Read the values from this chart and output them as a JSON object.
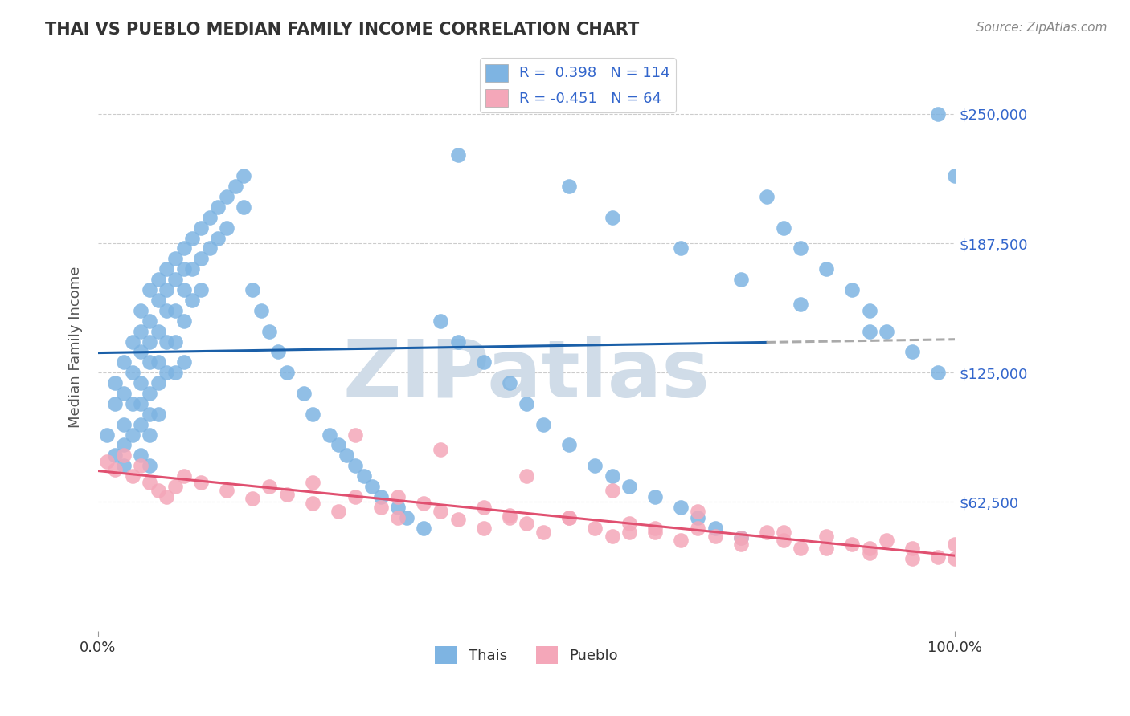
{
  "title": "THAI VS PUEBLO MEDIAN FAMILY INCOME CORRELATION CHART",
  "source_text": "Source: ZipAtlas.com",
  "ylabel": "Median Family Income",
  "xlim": [
    0,
    100
  ],
  "ylim": [
    0,
    275000
  ],
  "yticks": [
    62500,
    125000,
    187500,
    250000
  ],
  "ytick_labels": [
    "$62,500",
    "$125,000",
    "$187,500",
    "$250,000"
  ],
  "xticks": [
    0,
    100
  ],
  "xtick_labels": [
    "0.0%",
    "100.0%"
  ],
  "r_thais": 0.398,
  "n_thais": 114,
  "r_pueblo": -0.451,
  "n_pueblo": 64,
  "blue_color": "#7eb4e2",
  "pink_color": "#f4a7b9",
  "blue_line_color": "#1a5fa8",
  "pink_line_color": "#e05070",
  "title_color": "#333333",
  "axis_label_color": "#555555",
  "tick_label_color": "#3366cc",
  "grid_color": "#cccccc",
  "background_color": "#ffffff",
  "watermark_text": "ZIPatlas",
  "watermark_color": "#d0dce8",
  "legend_r_color": "#3366cc",
  "thais_scatter_x": [
    1,
    2,
    2,
    2,
    3,
    3,
    3,
    3,
    3,
    4,
    4,
    4,
    4,
    5,
    5,
    5,
    5,
    5,
    5,
    5,
    6,
    6,
    6,
    6,
    6,
    6,
    6,
    6,
    7,
    7,
    7,
    7,
    7,
    7,
    8,
    8,
    8,
    8,
    8,
    9,
    9,
    9,
    9,
    9,
    10,
    10,
    10,
    10,
    10,
    11,
    11,
    11,
    12,
    12,
    12,
    13,
    13,
    14,
    14,
    15,
    15,
    16,
    17,
    17,
    18,
    19,
    20,
    21,
    22,
    24,
    25,
    27,
    28,
    29,
    30,
    31,
    32,
    33,
    35,
    36,
    38,
    40,
    42,
    45,
    48,
    50,
    52,
    55,
    58,
    60,
    62,
    65,
    68,
    70,
    72,
    75,
    78,
    80,
    82,
    85,
    88,
    90,
    92,
    95,
    98,
    100,
    42,
    55,
    60,
    68,
    75,
    82,
    90,
    98
  ],
  "thais_scatter_y": [
    95000,
    110000,
    120000,
    85000,
    130000,
    115000,
    100000,
    90000,
    80000,
    140000,
    125000,
    110000,
    95000,
    155000,
    145000,
    135000,
    120000,
    110000,
    100000,
    85000,
    165000,
    150000,
    140000,
    130000,
    115000,
    105000,
    95000,
    80000,
    170000,
    160000,
    145000,
    130000,
    120000,
    105000,
    175000,
    165000,
    155000,
    140000,
    125000,
    180000,
    170000,
    155000,
    140000,
    125000,
    185000,
    175000,
    165000,
    150000,
    130000,
    190000,
    175000,
    160000,
    195000,
    180000,
    165000,
    200000,
    185000,
    205000,
    190000,
    210000,
    195000,
    215000,
    220000,
    205000,
    165000,
    155000,
    145000,
    135000,
    125000,
    115000,
    105000,
    95000,
    90000,
    85000,
    80000,
    75000,
    70000,
    65000,
    60000,
    55000,
    50000,
    150000,
    140000,
    130000,
    120000,
    110000,
    100000,
    90000,
    80000,
    75000,
    70000,
    65000,
    60000,
    55000,
    50000,
    45000,
    210000,
    195000,
    185000,
    175000,
    165000,
    155000,
    145000,
    135000,
    125000,
    220000,
    230000,
    215000,
    200000,
    185000,
    170000,
    158000,
    145000,
    250000
  ],
  "pueblo_scatter_x": [
    1,
    2,
    3,
    4,
    5,
    6,
    7,
    8,
    9,
    10,
    12,
    15,
    18,
    20,
    22,
    25,
    28,
    30,
    33,
    35,
    38,
    40,
    42,
    45,
    48,
    50,
    52,
    55,
    58,
    60,
    62,
    65,
    68,
    70,
    72,
    75,
    78,
    80,
    82,
    85,
    88,
    90,
    92,
    95,
    98,
    100,
    30,
    40,
    50,
    60,
    70,
    80,
    90,
    100,
    25,
    45,
    55,
    65,
    75,
    85,
    95,
    35,
    48,
    62
  ],
  "pueblo_scatter_y": [
    82000,
    78000,
    85000,
    75000,
    80000,
    72000,
    68000,
    65000,
    70000,
    75000,
    72000,
    68000,
    64000,
    70000,
    66000,
    62000,
    58000,
    65000,
    60000,
    55000,
    62000,
    58000,
    54000,
    50000,
    56000,
    52000,
    48000,
    55000,
    50000,
    46000,
    52000,
    48000,
    44000,
    50000,
    46000,
    42000,
    48000,
    44000,
    40000,
    46000,
    42000,
    38000,
    44000,
    40000,
    36000,
    42000,
    95000,
    88000,
    75000,
    68000,
    58000,
    48000,
    40000,
    35000,
    72000,
    60000,
    55000,
    50000,
    45000,
    40000,
    35000,
    65000,
    55000,
    48000
  ]
}
